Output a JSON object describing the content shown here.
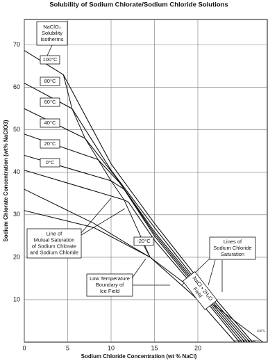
{
  "chart_data": {
    "type": "line",
    "title": "Solubility of Sodium Chlorate/Sodium Chloride Solutions",
    "x_label": "Sodium Chloride Concentration (wt % NaCl)",
    "y_label": "Sodium Chlorate Concentration (wt% NaClO3)",
    "xlim": [
      0,
      28
    ],
    "ylim": [
      0,
      76
    ],
    "xticks": [
      0,
      5,
      10,
      15,
      20
    ],
    "yticks": [
      10,
      20,
      30,
      40,
      50,
      60,
      70
    ],
    "grid": true,
    "color": "#111111",
    "series": [
      {
        "name": "100°C",
        "x": [
          0,
          4.5,
          10,
          15,
          20,
          26.3
        ],
        "values": [
          68.7,
          63,
          42,
          28,
          15,
          0
        ]
      },
      {
        "name": "80°C",
        "x": [
          0,
          5.5,
          10,
          15,
          20,
          26
        ],
        "values": [
          61,
          55,
          40.5,
          27,
          14,
          0
        ]
      },
      {
        "name": "60°C",
        "x": [
          0,
          7,
          10.5,
          15,
          20,
          25.7
        ],
        "values": [
          55,
          48,
          39,
          26,
          13.5,
          0
        ]
      },
      {
        "name": "40°C",
        "x": [
          0,
          8.5,
          11,
          15,
          20,
          25.4
        ],
        "values": [
          49,
          43,
          37.5,
          25.5,
          13,
          0
        ]
      },
      {
        "name": "20°C",
        "x": [
          0,
          10,
          11.5,
          15,
          20,
          25.1
        ],
        "values": [
          44,
          38,
          36,
          25,
          12.5,
          0
        ]
      },
      {
        "name": "0°C",
        "x": [
          0,
          11.5,
          12,
          15,
          20,
          24.8
        ],
        "values": [
          40.5,
          33.5,
          33,
          24,
          12,
          0
        ]
      },
      {
        "name": "-20°C",
        "x": [
          0,
          8,
          14.5,
          20,
          24.3
        ],
        "values": [
          31,
          27,
          20,
          10,
          0
        ]
      }
    ],
    "boundaries": [
      {
        "name": "mutual-saturation",
        "x": [
          4.5,
          5.5,
          7,
          8.5,
          10,
          11.5,
          14.5
        ],
        "values": [
          63,
          55,
          48,
          43,
          38,
          33.5,
          20
        ]
      },
      {
        "name": "ice-boundary",
        "x": [
          0,
          4,
          8,
          12,
          14.5
        ],
        "values": [
          36,
          32,
          28,
          23,
          20
        ]
      },
      {
        "name": "dihydrate-boundary",
        "x": [
          14.5,
          27.5
        ],
        "values": [
          20,
          0
        ]
      }
    ],
    "annotations": [
      [
        "NaClO₃",
        "Solubility",
        "Isotherms"
      ],
      [
        "Line of",
        "Mutual Saturation",
        "of Sodium Chlorate",
        "and Sodium Chloride"
      ],
      [
        "Low Temperature",
        "Boundary of",
        "Ice Field"
      ],
      [
        "Lines of",
        "Sodium Chloride",
        "Saturation"
      ],
      [
        "NaCl • 2H₂O",
        "Field"
      ]
    ]
  }
}
